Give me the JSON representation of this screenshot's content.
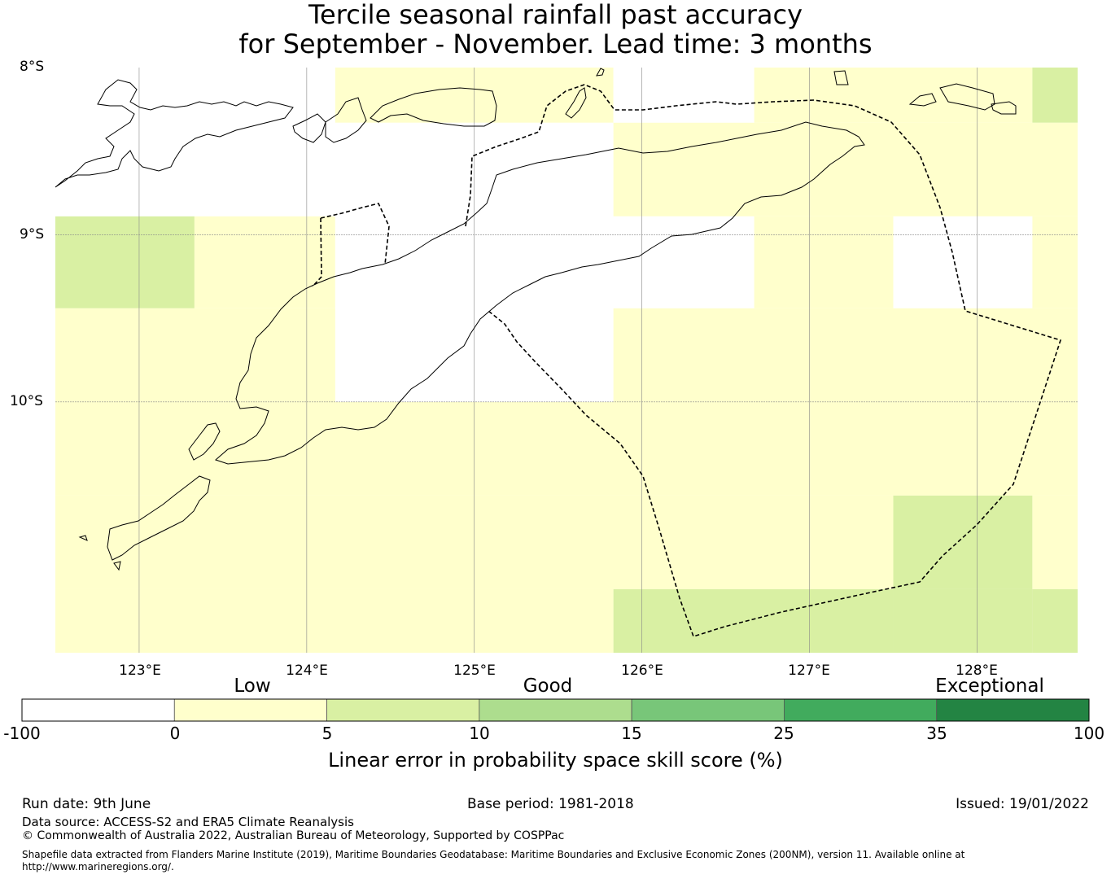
{
  "title": {
    "line1": "Tercile seasonal rainfall past accuracy",
    "line2": "for September - November. Lead time: 3 months"
  },
  "map": {
    "lon_range": [
      122.5,
      128.6
    ],
    "lat_range": [
      -11.5,
      -8.0
    ],
    "lat_labels": [
      "8°S",
      "9°S",
      "10°S"
    ],
    "lon_labels": [
      "123°E",
      "124°E",
      "125°E",
      "126°E",
      "127°E",
      "128°E"
    ],
    "grid_lons": [
      123,
      124,
      125,
      126,
      127,
      128
    ],
    "grid_lats": [
      -9,
      -10
    ],
    "cell_colors": {
      "white": "#ffffff",
      "low": "#ffffcc",
      "good5": "#d9f0a3"
    },
    "cells": [
      {
        "lon": [
          122.5,
          124.17
        ],
        "lat": [
          -8.89,
          -8.0
        ],
        "class": "white"
      },
      {
        "lon": [
          124.17,
          125.83
        ],
        "lat": [
          -8.0,
          -8.33
        ],
        "class": "low"
      },
      {
        "lon": [
          124.17,
          125.83
        ],
        "lat": [
          -8.33,
          -8.89
        ],
        "class": "white"
      },
      {
        "lon": [
          125.83,
          126.67
        ],
        "lat": [
          -8.0,
          -8.33
        ],
        "class": "white"
      },
      {
        "lon": [
          126.67,
          128.33
        ],
        "lat": [
          -8.0,
          -8.33
        ],
        "class": "low"
      },
      {
        "lon": [
          128.33,
          128.6
        ],
        "lat": [
          -8.0,
          -8.33
        ],
        "class": "good5"
      },
      {
        "lon": [
          125.83,
          128.6
        ],
        "lat": [
          -8.33,
          -8.89
        ],
        "class": "low"
      },
      {
        "lon": [
          122.5,
          123.33
        ],
        "lat": [
          -8.89,
          -9.44
        ],
        "class": "good5"
      },
      {
        "lon": [
          123.33,
          124.17
        ],
        "lat": [
          -8.89,
          -9.44
        ],
        "class": "low"
      },
      {
        "lon": [
          124.17,
          125.83
        ],
        "lat": [
          -8.89,
          -10.0
        ],
        "class": "white"
      },
      {
        "lon": [
          125.83,
          126.67
        ],
        "lat": [
          -8.89,
          -9.44
        ],
        "class": "white"
      },
      {
        "lon": [
          126.67,
          127.5
        ],
        "lat": [
          -8.89,
          -9.44
        ],
        "class": "low"
      },
      {
        "lon": [
          127.5,
          128.33
        ],
        "lat": [
          -8.89,
          -9.44
        ],
        "class": "white"
      },
      {
        "lon": [
          128.33,
          128.6
        ],
        "lat": [
          -8.89,
          -9.44
        ],
        "class": "low"
      },
      {
        "lon": [
          122.5,
          124.17
        ],
        "lat": [
          -9.44,
          -10.0
        ],
        "class": "low"
      },
      {
        "lon": [
          125.83,
          128.6
        ],
        "lat": [
          -9.44,
          -10.0
        ],
        "class": "low"
      },
      {
        "lon": [
          122.5,
          127.5
        ],
        "lat": [
          -10.0,
          -10.56
        ],
        "class": "low"
      },
      {
        "lon": [
          127.5,
          128.6
        ],
        "lat": [
          -10.0,
          -10.56
        ],
        "class": "low"
      },
      {
        "lon": [
          122.5,
          127.5
        ],
        "lat": [
          -10.56,
          -11.12
        ],
        "class": "low"
      },
      {
        "lon": [
          127.5,
          128.33
        ],
        "lat": [
          -10.56,
          -11.12
        ],
        "class": "good5"
      },
      {
        "lon": [
          128.33,
          128.6
        ],
        "lat": [
          -10.56,
          -11.12
        ],
        "class": "low"
      },
      {
        "lon": [
          122.5,
          125.83
        ],
        "lat": [
          -11.12,
          -11.5
        ],
        "class": "low"
      },
      {
        "lon": [
          125.83,
          127.5
        ],
        "lat": [
          -11.12,
          -11.5
        ],
        "class": "good5"
      },
      {
        "lon": [
          127.5,
          128.33
        ],
        "lat": [
          -11.12,
          -11.5
        ],
        "class": "good5"
      },
      {
        "lon": [
          128.33,
          128.6
        ],
        "lat": [
          -11.12,
          -11.5
        ],
        "class": "good5"
      }
    ]
  },
  "colorbar": {
    "categories": [
      "Low",
      "Good",
      "Exceptional"
    ],
    "ticks": [
      "-100",
      "0",
      "5",
      "10",
      "15",
      "25",
      "35",
      "100"
    ],
    "colors": [
      "#ffffff",
      "#ffffcc",
      "#d9f0a3",
      "#addd8e",
      "#78c679",
      "#41ab5d",
      "#238443"
    ],
    "label": "Linear error in probability space skill score (%)"
  },
  "footer": {
    "run_date": "Run date: 9th June",
    "base_period": "Base period: 1981-2018",
    "issued": "Issued: 19/01/2022",
    "data_source": "Data source: ACCESS-S2 and ERA5 Climate Reanalysis",
    "copyright": "© Commonwealth of Australia 2022, Australian Bureau of Meteorology, Supported by COSPPac",
    "shapefile": "Shapefile data extracted from Flanders Marine Institute (2019), Maritime Boundaries Geodatabase: Maritime Boundaries and Exclusive Economic Zones (200NM), version 11. Available online at http://www.marineregions.org/."
  }
}
